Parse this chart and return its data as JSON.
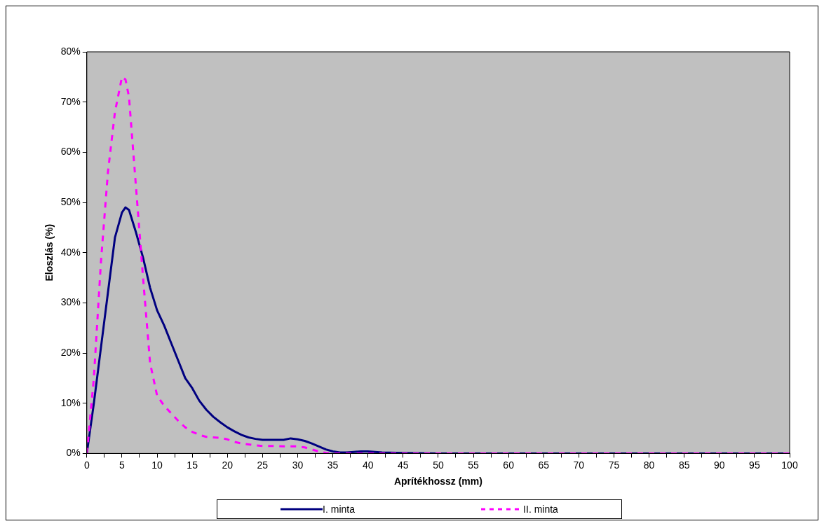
{
  "chart_data": {
    "type": "line",
    "xlabel": "Aprítékhossz (mm)",
    "ylabel": "Eloszlás (%)",
    "xlim": [
      0,
      100
    ],
    "xticks": [
      0,
      {
        "value": 2.5,
        "label": null
      },
      5,
      {
        "value": 7.5,
        "label": null
      },
      10,
      {
        "value": 12.5,
        "label": null
      },
      15,
      {
        "value": 17.5,
        "label": null
      },
      20,
      {
        "value": 22.5,
        "label": null
      },
      25,
      {
        "value": 27.5,
        "label": null
      },
      30,
      {
        "value": 32.5,
        "label": null
      },
      35,
      {
        "value": 37.5,
        "label": null
      },
      40,
      {
        "value": 42.5,
        "label": null
      },
      45,
      {
        "value": 47.5,
        "label": null
      },
      50,
      {
        "value": 52.5,
        "label": null
      },
      55,
      {
        "value": 57.5,
        "label": null
      },
      60,
      {
        "value": 62.5,
        "label": null
      },
      65,
      {
        "value": 67.5,
        "label": null
      },
      70,
      {
        "value": 72.5,
        "label": null
      },
      75,
      {
        "value": 77.5,
        "label": null
      },
      80,
      {
        "value": 82.5,
        "label": null
      },
      85,
      {
        "value": 87.5,
        "label": null
      },
      90,
      {
        "value": 92.5,
        "label": null
      },
      95,
      {
        "value": 97.5,
        "label": null
      },
      100
    ],
    "ylim": [
      0,
      80
    ],
    "yticks": [
      {
        "value": 0,
        "label": "0%"
      },
      {
        "value": 10,
        "label": "10%"
      },
      {
        "value": 20,
        "label": "20%"
      },
      {
        "value": 30,
        "label": "30%"
      },
      {
        "value": 40,
        "label": "40%"
      },
      {
        "value": 50,
        "label": "50%"
      },
      {
        "value": 60,
        "label": "60%"
      },
      {
        "value": 70,
        "label": "70%"
      },
      {
        "value": 80,
        "label": "80%"
      }
    ],
    "grid": false,
    "legend": "bottom",
    "marker": "none",
    "series": [
      {
        "name": "I. minta",
        "color": "#000080",
        "line_style": "solid",
        "x": [
          0,
          1,
          2,
          3,
          4,
          5,
          5.5,
          6,
          7,
          8,
          9,
          10,
          11,
          12,
          13,
          14,
          15,
          16,
          17,
          18,
          19,
          20,
          21,
          22,
          23,
          24,
          25,
          26,
          27,
          28,
          29,
          30,
          31,
          32,
          33,
          34,
          35,
          36,
          37,
          38,
          39,
          40,
          41,
          42,
          45,
          50,
          100
        ],
        "values": [
          0,
          10,
          21,
          32,
          43,
          48,
          49,
          48.5,
          44,
          39,
          33,
          28.5,
          25.5,
          22,
          18.5,
          15,
          13,
          10.5,
          8.7,
          7.3,
          6.2,
          5.2,
          4.4,
          3.7,
          3.2,
          2.9,
          2.7,
          2.7,
          2.7,
          2.7,
          3,
          2.8,
          2.5,
          2,
          1.4,
          0.8,
          0.4,
          0.2,
          0.2,
          0.3,
          0.4,
          0.4,
          0.3,
          0.2,
          0.1,
          0,
          0
        ]
      },
      {
        "name": "II. minta",
        "color": "#ff00ff",
        "line_style": "dashed",
        "x": [
          0,
          1,
          2,
          3,
          4,
          5,
          5.5,
          6,
          7,
          8,
          9,
          10,
          11,
          12,
          13,
          14,
          15,
          16,
          17,
          18,
          19,
          20,
          21,
          22,
          23,
          24,
          25,
          26,
          27,
          28,
          29,
          30,
          31,
          32,
          33,
          34,
          35,
          40,
          100
        ],
        "values": [
          0,
          15,
          38,
          56,
          68,
          75,
          74.5,
          71,
          53,
          35,
          18,
          11.5,
          9.5,
          8,
          6.5,
          5.2,
          4.3,
          3.7,
          3.3,
          3.2,
          3.1,
          2.8,
          2.3,
          2,
          1.8,
          1.6,
          1.5,
          1.5,
          1.5,
          1.4,
          1.4,
          1.4,
          1.2,
          0.8,
          0.4,
          0.1,
          0,
          0,
          0
        ]
      }
    ]
  }
}
